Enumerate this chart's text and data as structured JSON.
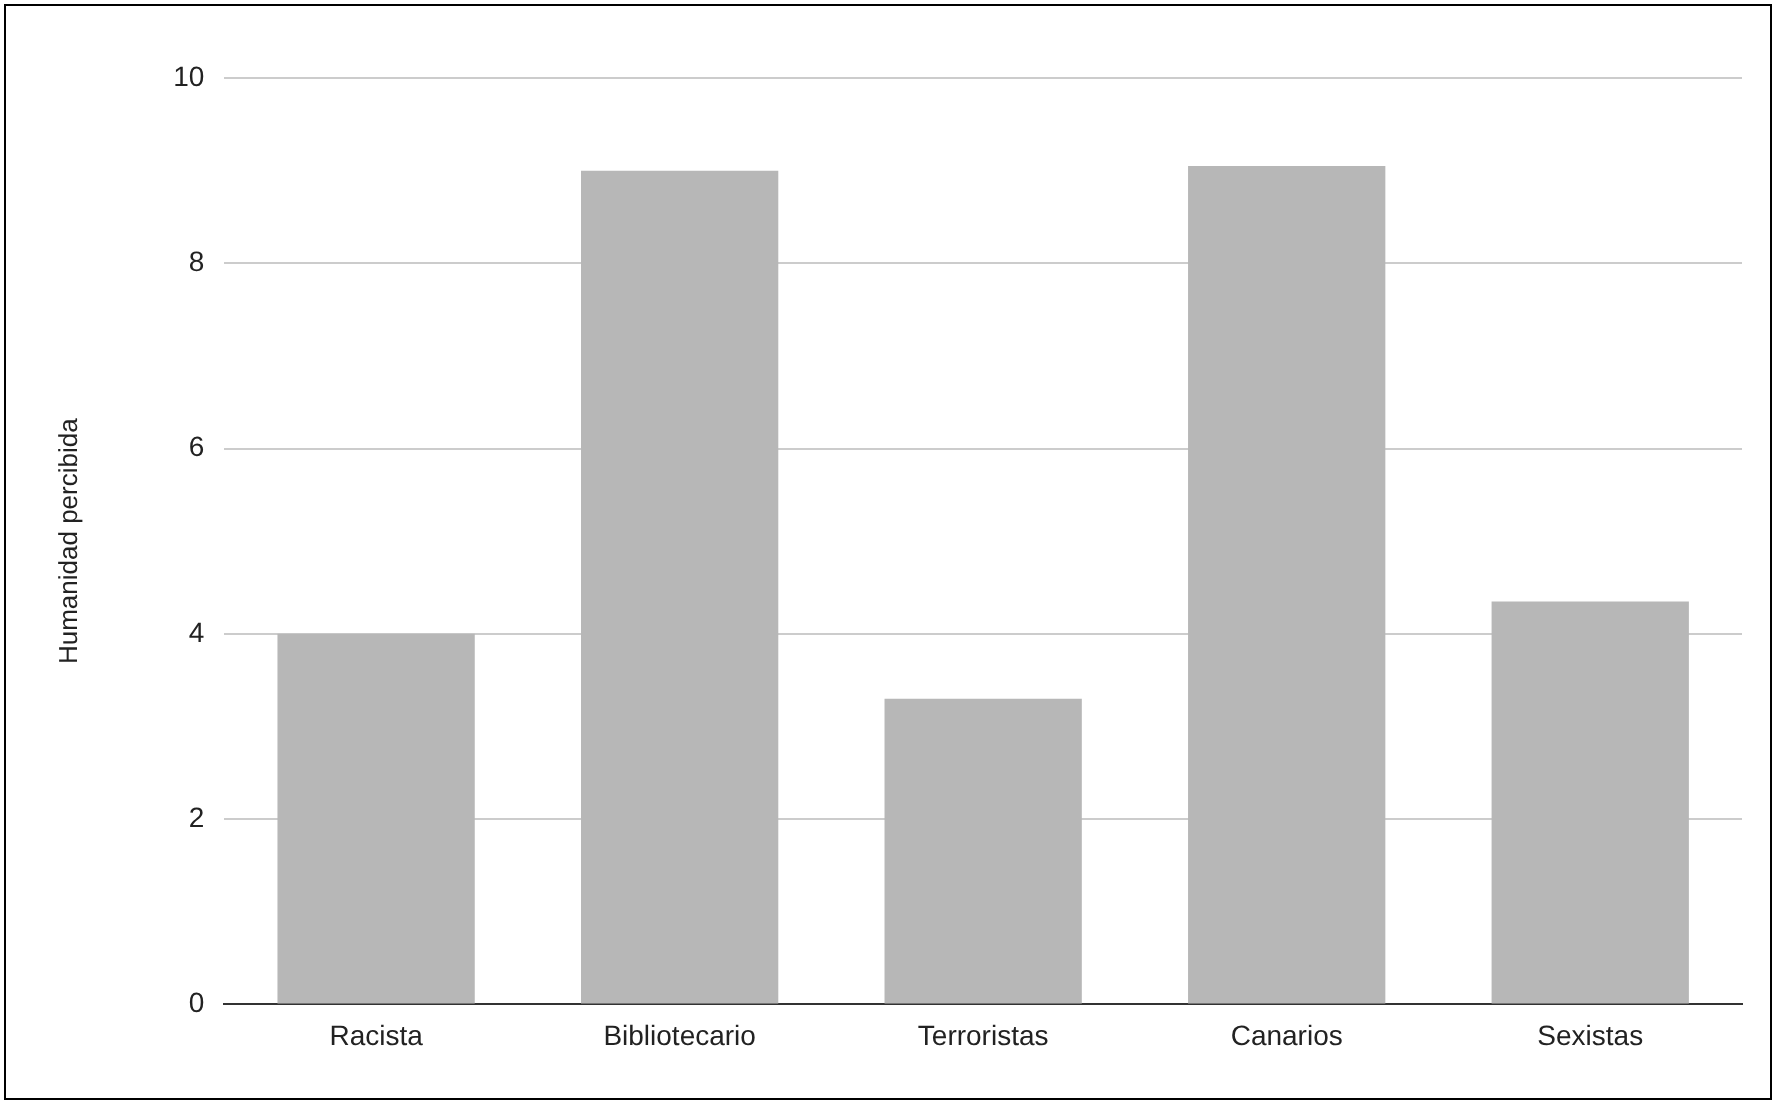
{
  "chart_data": {
    "type": "bar",
    "ylabel": "Humanidad percibida",
    "categories": [
      "Racista",
      "Bibliotecario",
      "Terroristas",
      "Canarios",
      "Sexistas"
    ],
    "values": [
      4,
      9,
      3.3,
      9.05,
      4.35
    ],
    "color": "#b7b7b7",
    "ylim": [
      0,
      10
    ],
    "yticks": [
      0,
      2,
      4,
      6,
      8,
      10
    ],
    "grid": "y",
    "legend": false
  }
}
